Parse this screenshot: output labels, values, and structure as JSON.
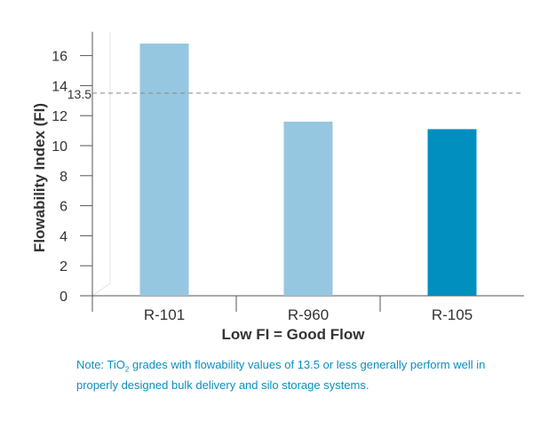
{
  "chart_data": {
    "type": "bar",
    "categories": [
      "R-101",
      "R-960",
      "R-105"
    ],
    "values": [
      16.8,
      11.6,
      11.1
    ],
    "colors": [
      "#95c7e0",
      "#95c7e0",
      "#008fbf"
    ],
    "ylabel": "Flowability Index (FI)",
    "xlabel": "Low FI = Good Flow",
    "ylim": [
      0,
      17
    ],
    "yticks": [
      0,
      2,
      4,
      6,
      8,
      10,
      12,
      14,
      16
    ],
    "reference_line": {
      "value": 13.5,
      "label": "13.5",
      "style": "dashed"
    },
    "grid": false
  },
  "note": {
    "prefix": "Note: TiO",
    "subscript": "2",
    "text": " grades with flowability values of 13.5 or less generally perform well in properly designed bulk delivery and silo storage systems."
  }
}
